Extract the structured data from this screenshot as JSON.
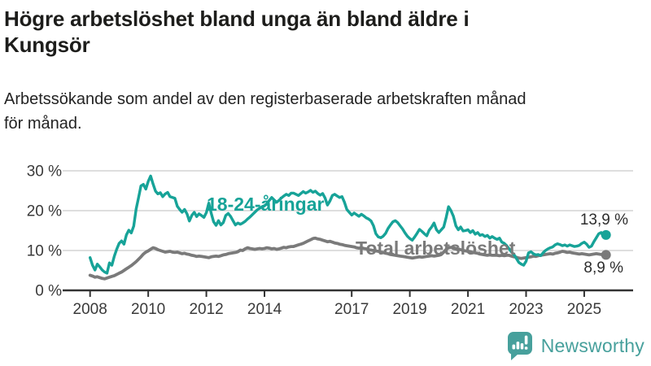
{
  "header": {
    "title": "Högre arbetslöshet bland unga än bland äldre i\nKungsör",
    "subtitle": "Arbetssökande som andel av den registerbaserade arbetskraften månad\nför månad."
  },
  "colors": {
    "accent_teal": "#17a398",
    "line_gray": "#7a7a7a",
    "axis": "#333333",
    "axis_text": "#3a3a3a",
    "grid": "#dedede",
    "value_label": "#2d2d2d",
    "logo_teal": "#47a09c"
  },
  "footer": {
    "brand": "Newsworthy",
    "logo_icon": "speech-bubble-bar-chart-icon"
  },
  "chart_data": {
    "type": "line",
    "title": "Högre arbetslöshet bland unga än bland äldre i Kungsör",
    "ylabel": "",
    "xlabel": "",
    "unit": "%",
    "frequency": "monthly",
    "start_month": "2008-01",
    "end_month": "2025-10",
    "ylim": [
      0,
      32
    ],
    "grid": "horizontal",
    "yticks_percent": [
      0,
      10,
      20,
      30
    ],
    "ytick_labels": [
      "0 %",
      "10 %",
      "20 %",
      "30 %"
    ],
    "xticks_years": [
      2008,
      2010,
      2012,
      2014,
      2017,
      2019,
      2021,
      2023,
      2025
    ],
    "series": [
      {
        "name": "18-24-åringar",
        "color": "#17a398",
        "end_label": "13,9 %",
        "end_value": 13.9,
        "values": [
          8.2,
          6.3,
          5.1,
          6.6,
          5.9,
          5.1,
          4.6,
          4.3,
          6.9,
          6.3,
          8.6,
          10.3,
          11.8,
          12.4,
          11.6,
          13.9,
          15.1,
          14.4,
          16.1,
          20.4,
          23.2,
          26.2,
          26.6,
          25.4,
          27.3,
          28.7,
          26.7,
          24.9,
          24.2,
          24.5,
          23.5,
          24.2,
          24.6,
          23.5,
          23.3,
          23.1,
          21.1,
          20.3,
          19.6,
          20.3,
          19.2,
          17.4,
          18.8,
          19.6,
          18.5,
          19.2,
          18.8,
          18.3,
          19.5,
          21.9,
          19.4,
          17.2,
          16.3,
          17.5,
          16.4,
          17.0,
          18.8,
          19.3,
          18.6,
          17.5,
          16.4,
          16.9,
          16.6,
          16.9,
          17.3,
          17.9,
          18.4,
          19.0,
          19.6,
          20.2,
          20.6,
          21.0,
          21.2,
          21.8,
          22.6,
          23.3,
          22.7,
          22.1,
          22.6,
          23.2,
          23.7,
          24.1,
          23.8,
          24.4,
          24.4,
          24.1,
          23.8,
          24.3,
          24.8,
          24.4,
          24.7,
          25.1,
          24.6,
          24.9,
          24.3,
          23.9,
          24.3,
          23.2,
          21.4,
          22.4,
          23.8,
          24.1,
          23.7,
          23.3,
          23.5,
          22.1,
          20.3,
          19.6,
          18.9,
          19.4,
          19.0,
          18.6,
          19.1,
          18.7,
          18.2,
          17.9,
          17.4,
          16.2,
          14.2,
          13.4,
          13.2,
          13.6,
          14.3,
          15.5,
          16.4,
          17.2,
          17.5,
          17.0,
          16.2,
          15.4,
          14.4,
          13.6,
          13.0,
          12.6,
          13.4,
          14.3,
          15.3,
          14.8,
          14.2,
          13.7,
          15.1,
          15.9,
          16.9,
          15.2,
          14.5,
          15.2,
          15.9,
          18.3,
          21.0,
          20.0,
          18.6,
          16.2,
          15.2,
          15.9,
          14.9,
          15.0,
          15.2,
          14.5,
          15.0,
          14.1,
          14.5,
          13.8,
          14.0,
          13.5,
          13.8,
          13.1,
          13.5,
          13.1,
          12.8,
          13.1,
          12.1,
          11.8,
          11.2,
          10.4,
          9.6,
          9.0,
          8.0,
          7.0,
          6.6,
          6.3,
          7.3,
          9.4,
          9.7,
          9.2,
          8.9,
          9.0,
          8.7,
          9.4,
          10.0,
          10.4,
          10.7,
          10.9,
          11.4,
          11.7,
          11.5,
          11.2,
          11.4,
          11.1,
          11.4,
          11.2,
          11.0,
          11.1,
          11.3,
          11.8,
          12.1,
          11.6,
          10.8,
          11.1,
          12.2,
          13.2,
          14.2,
          14.5,
          13.4,
          13.9
        ]
      },
      {
        "name": "Total arbetslöshet",
        "color": "#7a7a7a",
        "end_label": "8,9 %",
        "end_value": 8.9,
        "values": [
          3.8,
          3.6,
          3.3,
          3.4,
          3.2,
          3.0,
          2.9,
          3.1,
          3.3,
          3.5,
          3.7,
          4.0,
          4.3,
          4.6,
          5.0,
          5.4,
          5.8,
          6.2,
          6.7,
          7.2,
          7.8,
          8.4,
          9.1,
          9.6,
          9.9,
          10.3,
          10.7,
          10.5,
          10.2,
          10.0,
          9.8,
          9.6,
          9.7,
          9.8,
          9.6,
          9.5,
          9.6,
          9.4,
          9.2,
          9.3,
          9.1,
          9.0,
          8.8,
          8.7,
          8.5,
          8.6,
          8.5,
          8.4,
          8.3,
          8.2,
          8.4,
          8.5,
          8.6,
          8.5,
          8.7,
          8.9,
          9.0,
          9.2,
          9.3,
          9.4,
          9.5,
          9.7,
          10.1,
          10.0,
          10.4,
          10.7,
          10.5,
          10.4,
          10.3,
          10.4,
          10.5,
          10.4,
          10.5,
          10.7,
          10.6,
          10.4,
          10.5,
          10.3,
          10.4,
          10.6,
          10.8,
          10.7,
          10.9,
          11.0,
          11.0,
          11.2,
          11.4,
          11.6,
          11.8,
          12.1,
          12.4,
          12.7,
          13.0,
          13.1,
          12.9,
          12.8,
          12.6,
          12.4,
          12.2,
          12.3,
          12.1,
          11.9,
          11.8,
          11.6,
          11.5,
          11.3,
          11.2,
          11.1,
          11.0,
          10.9,
          10.7,
          10.6,
          10.7,
          10.5,
          10.4,
          10.2,
          10.1,
          10.0,
          9.9,
          9.8,
          9.6,
          9.5,
          9.3,
          9.2,
          9.0,
          8.9,
          8.8,
          8.7,
          8.6,
          8.5,
          8.4,
          8.3,
          8.2,
          8.1,
          8.2,
          8.3,
          8.4,
          8.3,
          8.4,
          8.5,
          8.6,
          8.7,
          8.6,
          8.7,
          8.8,
          9.0,
          9.6,
          10.3,
          10.7,
          10.8,
          10.7,
          10.5,
          10.4,
          10.2,
          10.0,
          9.9,
          9.8,
          9.7,
          9.5,
          9.4,
          9.3,
          9.1,
          9.0,
          8.9,
          8.8,
          8.9,
          8.8,
          8.8,
          8.8,
          8.7,
          8.8,
          8.7,
          8.8,
          8.8,
          8.6,
          8.4,
          8.3,
          8.1,
          8.0,
          8.1,
          8.2,
          8.3,
          8.4,
          8.6,
          8.5,
          8.7,
          8.8,
          8.9,
          9.0,
          9.1,
          9.2,
          9.1,
          9.3,
          9.4,
          9.6,
          9.8,
          9.7,
          9.5,
          9.6,
          9.4,
          9.3,
          9.2,
          9.1,
          9.2,
          9.1,
          9.0,
          8.9,
          9.0,
          9.1,
          9.2,
          9.1,
          9.0,
          8.9,
          8.9
        ]
      }
    ],
    "legend_position": "inline-labels"
  }
}
